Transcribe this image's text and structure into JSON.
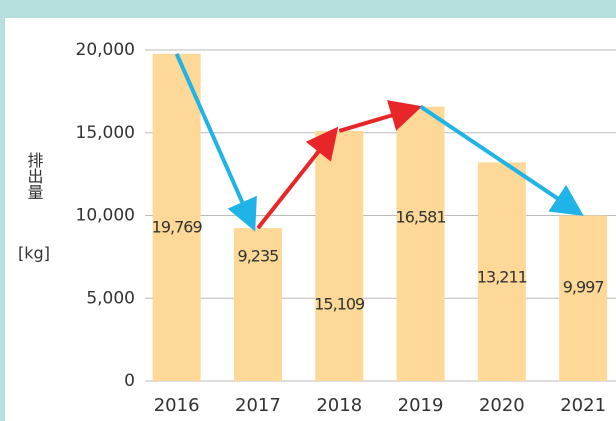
{
  "chart_data": {
    "type": "bar",
    "y_label": "排出量",
    "y_unit": "[kg]",
    "categories": [
      "2016",
      "2017",
      "2018",
      "2019",
      "2020",
      "2021"
    ],
    "values": [
      19769,
      9235,
      15109,
      16581,
      13211,
      9997
    ],
    "value_labels": [
      "19,769",
      "9,235",
      "15,109",
      "16,581",
      "13,211",
      "9,997"
    ],
    "color": "#fdd896",
    "ylim": [
      0,
      20000
    ],
    "yticks": [
      0,
      {
        "value": 5000,
        "label": "5,000"
      },
      {
        "value": 10000,
        "label": "10,000"
      },
      {
        "value": 15000,
        "label": "15,000"
      },
      {
        "value": 20000,
        "label": "20,000"
      }
    ],
    "grid": true
  }
}
